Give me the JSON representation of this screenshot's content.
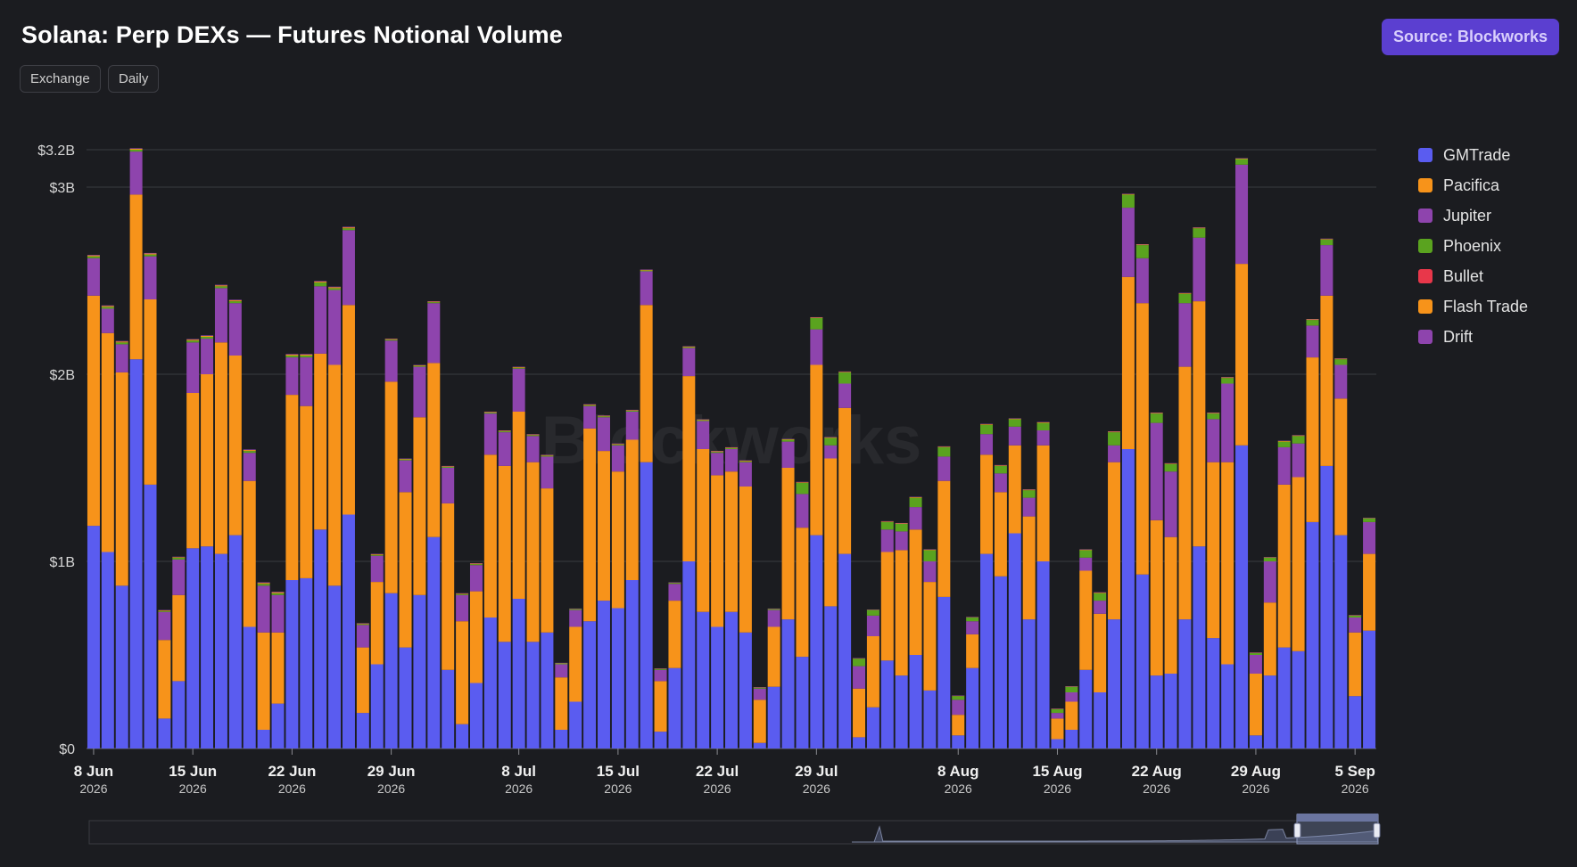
{
  "header": {
    "title": "Solana: Perp DEXs — Futures Notional Volume",
    "source_button": "Source: Blockworks",
    "chips": [
      "Exchange",
      "Daily"
    ]
  },
  "watermark": "Blockworks",
  "chart_data": {
    "type": "bar",
    "stacked": true,
    "title": "Solana: Perp DEXs — Futures Notional Volume",
    "ylim": [
      0,
      3200000000
    ],
    "y_ticks": [
      {
        "value": 0,
        "label": "$0"
      },
      {
        "value": 1000000000,
        "label": "$1B"
      },
      {
        "value": 2000000000,
        "label": "$2B"
      },
      {
        "value": 3000000000,
        "label": "$3B"
      },
      {
        "value": 3200000000,
        "label": "$3.2B"
      }
    ],
    "x_ticks": [
      {
        "index": 0,
        "label": "8 Jun",
        "year": "2026"
      },
      {
        "index": 7,
        "label": "15 Jun",
        "year": "2026"
      },
      {
        "index": 14,
        "label": "22 Jun",
        "year": "2026"
      },
      {
        "index": 21,
        "label": "29 Jun",
        "year": "2026"
      },
      {
        "index": 30,
        "label": "8 Jul",
        "year": "2026"
      },
      {
        "index": 37,
        "label": "15 Jul",
        "year": "2026"
      },
      {
        "index": 44,
        "label": "22 Jul",
        "year": "2026"
      },
      {
        "index": 51,
        "label": "29 Jul",
        "year": "2026"
      },
      {
        "index": 61,
        "label": "8 Aug",
        "year": "2026"
      },
      {
        "index": 68,
        "label": "15 Aug",
        "year": "2026"
      },
      {
        "index": 75,
        "label": "22 Aug",
        "year": "2026"
      },
      {
        "index": 82,
        "label": "29 Aug",
        "year": "2026"
      },
      {
        "index": 89,
        "label": "5 Sep",
        "year": "2026"
      }
    ],
    "legend_position": "right",
    "series": [
      {
        "name": "GMTrade",
        "color": "#5a5cf0",
        "unit": "B USD",
        "values": [
          1.19,
          1.05,
          0.87,
          2.08,
          1.41,
          0.16,
          0.36,
          1.07,
          1.08,
          1.04,
          1.14,
          0.65,
          0.1,
          0.24,
          0.9,
          0.91,
          1.17,
          0.87,
          1.25,
          0.19,
          0.45,
          0.83,
          0.54,
          0.82,
          1.13,
          0.42,
          0.13,
          0.35,
          0.7,
          0.57,
          0.8,
          0.57,
          0.62,
          0.1,
          0.25,
          0.68,
          0.79,
          0.75,
          0.9,
          1.53,
          0.09,
          0.43,
          1.0,
          0.73,
          0.65,
          0.73,
          0.62,
          0.03,
          0.33,
          0.69,
          0.49,
          1.14,
          0.76,
          1.04,
          0.06,
          0.22,
          0.47,
          0.39,
          0.5,
          0.31,
          0.81,
          0.07,
          0.43,
          1.04,
          0.92,
          1.15,
          0.69,
          1.0,
          0.05,
          0.1,
          0.42,
          0.3,
          0.69,
          1.6,
          0.93,
          0.39,
          0.4,
          0.69,
          1.08,
          0.59,
          0.45,
          1.62,
          0.07,
          0.39,
          0.54,
          0.52,
          1.21,
          1.51,
          1.14,
          0.28,
          0.63
        ]
      },
      {
        "name": "Pacifica",
        "color": "#f7931a",
        "unit": "B USD",
        "values": [
          1.23,
          1.17,
          1.14,
          0.88,
          0.99,
          0.42,
          0.46,
          0.83,
          0.92,
          1.13,
          0.96,
          0.78,
          0.52,
          0.38,
          0.99,
          0.92,
          0.94,
          1.18,
          1.12,
          0.35,
          0.44,
          1.13,
          0.83,
          0.95,
          0.93,
          0.89,
          0.55,
          0.49,
          0.87,
          0.94,
          1.0,
          0.96,
          0.77,
          0.28,
          0.4,
          1.03,
          0.8,
          0.73,
          0.75,
          0.84,
          0.27,
          0.36,
          0.99,
          0.87,
          0.81,
          0.75,
          0.78,
          0.23,
          0.32,
          0.81,
          0.69,
          0.91,
          0.79,
          0.78,
          0.26,
          0.38,
          0.58,
          0.67,
          0.67,
          0.58,
          0.62,
          0.11,
          0.18,
          0.53,
          0.45,
          0.47,
          0.55,
          0.62,
          0.11,
          0.15,
          0.53,
          0.42,
          0.84,
          0.92,
          1.45,
          0.83,
          0.73,
          1.35,
          1.31,
          0.94,
          1.08,
          0.97,
          0.33,
          0.39,
          0.87,
          0.93,
          0.88,
          0.91,
          0.73,
          0.34,
          0.41
        ]
      },
      {
        "name": "Jupiter",
        "color": "#8e44ad",
        "unit": "B USD",
        "values": [
          0.2,
          0.13,
          0.15,
          0.23,
          0.23,
          0.15,
          0.19,
          0.27,
          0.19,
          0.29,
          0.28,
          0.15,
          0.25,
          0.2,
          0.2,
          0.26,
          0.36,
          0.4,
          0.4,
          0.12,
          0.14,
          0.22,
          0.17,
          0.27,
          0.32,
          0.19,
          0.14,
          0.14,
          0.22,
          0.18,
          0.23,
          0.14,
          0.17,
          0.07,
          0.09,
          0.12,
          0.18,
          0.14,
          0.15,
          0.18,
          0.06,
          0.09,
          0.15,
          0.15,
          0.12,
          0.12,
          0.13,
          0.06,
          0.09,
          0.14,
          0.18,
          0.19,
          0.07,
          0.13,
          0.12,
          0.11,
          0.12,
          0.1,
          0.12,
          0.11,
          0.13,
          0.08,
          0.07,
          0.11,
          0.1,
          0.1,
          0.1,
          0.08,
          0.03,
          0.05,
          0.07,
          0.07,
          0.09,
          0.37,
          0.24,
          0.52,
          0.35,
          0.34,
          0.34,
          0.23,
          0.42,
          0.53,
          0.1,
          0.22,
          0.2,
          0.18,
          0.17,
          0.27,
          0.18,
          0.08,
          0.17
        ]
      },
      {
        "name": "Phoenix",
        "color": "#5aa31f",
        "unit": "B USD",
        "values": [
          0.01,
          0.01,
          0.01,
          0.01,
          0.01,
          0.005,
          0.01,
          0.01,
          0.01,
          0.01,
          0.01,
          0.01,
          0.01,
          0.01,
          0.01,
          0.01,
          0.02,
          0.01,
          0.01,
          0.005,
          0.005,
          0.005,
          0.005,
          0.005,
          0.005,
          0.005,
          0.005,
          0.005,
          0.005,
          0.005,
          0.005,
          0.005,
          0.005,
          0.005,
          0.005,
          0.005,
          0.005,
          0.005,
          0.005,
          0.005,
          0.005,
          0.005,
          0.005,
          0.005,
          0.005,
          0.005,
          0.005,
          0.005,
          0.005,
          0.01,
          0.06,
          0.06,
          0.04,
          0.06,
          0.04,
          0.03,
          0.04,
          0.04,
          0.05,
          0.06,
          0.05,
          0.02,
          0.02,
          0.05,
          0.04,
          0.04,
          0.04,
          0.04,
          0.02,
          0.03,
          0.04,
          0.04,
          0.07,
          0.07,
          0.07,
          0.05,
          0.04,
          0.05,
          0.05,
          0.03,
          0.03,
          0.03,
          0.01,
          0.02,
          0.03,
          0.04,
          0.03,
          0.03,
          0.03,
          0.01,
          0.02
        ]
      },
      {
        "name": "Bullet",
        "color": "#e8374a",
        "unit": "B USD",
        "values": [
          0,
          0,
          0,
          0,
          0,
          0,
          0,
          0,
          0,
          0,
          0,
          0,
          0,
          0,
          0,
          0,
          0,
          0,
          0,
          0,
          0,
          0,
          0,
          0,
          0,
          0,
          0,
          0,
          0,
          0,
          0,
          0,
          0,
          0,
          0,
          0,
          0,
          0,
          0,
          0,
          0,
          0,
          0,
          0,
          0,
          0,
          0,
          0,
          0,
          0,
          0,
          0,
          0,
          0,
          0,
          0,
          0,
          0,
          0,
          0,
          0,
          0,
          0,
          0,
          0,
          0,
          0,
          0,
          0,
          0,
          0,
          0,
          0,
          0,
          0,
          0,
          0,
          0,
          0,
          0,
          0,
          0,
          0,
          0,
          0,
          0,
          0,
          0,
          0,
          0,
          0
        ]
      },
      {
        "name": "Flash Trade",
        "color": "#f7931a",
        "unit": "B USD",
        "values": [
          0.005,
          0.005,
          0.005,
          0.005,
          0.005,
          0.003,
          0.003,
          0.005,
          0.005,
          0.005,
          0.005,
          0.005,
          0.005,
          0.005,
          0.005,
          0.005,
          0.005,
          0.005,
          0.005,
          0.003,
          0.003,
          0.003,
          0.003,
          0.003,
          0.003,
          0.003,
          0.003,
          0.003,
          0.003,
          0.003,
          0.003,
          0.003,
          0.003,
          0.002,
          0.002,
          0.003,
          0.003,
          0.003,
          0.003,
          0.003,
          0.002,
          0.002,
          0.003,
          0.003,
          0.003,
          0.003,
          0.003,
          0.002,
          0.002,
          0.003,
          0.003,
          0.003,
          0.003,
          0.003,
          0.002,
          0.002,
          0.003,
          0.003,
          0.003,
          0.003,
          0.003,
          0.002,
          0.002,
          0.003,
          0.003,
          0.003,
          0.003,
          0.003,
          0.002,
          0.002,
          0.003,
          0.003,
          0.003,
          0.003,
          0.003,
          0.003,
          0.003,
          0.003,
          0.003,
          0.003,
          0.003,
          0.003,
          0.002,
          0.002,
          0.003,
          0.003,
          0.003,
          0.003,
          0.003,
          0.002,
          0.002
        ]
      },
      {
        "name": "Drift",
        "color": "#8e44ad",
        "unit": "B USD",
        "values": [
          0.003,
          0.003,
          0.003,
          0.003,
          0.003,
          0.002,
          0.002,
          0.003,
          0.003,
          0.003,
          0.003,
          0.003,
          0.003,
          0.003,
          0.003,
          0.003,
          0.003,
          0.003,
          0.003,
          0.002,
          0.002,
          0.002,
          0.002,
          0.002,
          0.002,
          0.002,
          0.002,
          0.002,
          0.002,
          0.002,
          0.002,
          0.002,
          0.002,
          0.001,
          0.001,
          0.002,
          0.002,
          0.002,
          0.002,
          0.002,
          0.001,
          0.001,
          0.002,
          0.002,
          0.002,
          0.002,
          0.002,
          0.001,
          0.001,
          0.002,
          0.002,
          0.002,
          0.002,
          0.002,
          0.001,
          0.001,
          0.002,
          0.002,
          0.002,
          0.002,
          0.002,
          0.001,
          0.001,
          0.002,
          0.002,
          0.002,
          0.002,
          0.002,
          0.001,
          0.001,
          0.002,
          0.002,
          0.002,
          0.002,
          0.002,
          0.002,
          0.002,
          0.002,
          0.002,
          0.002,
          0.002,
          0.002,
          0.001,
          0.001,
          0.002,
          0.002,
          0.002,
          0.002,
          0.002,
          0.001,
          0.001
        ]
      }
    ]
  }
}
